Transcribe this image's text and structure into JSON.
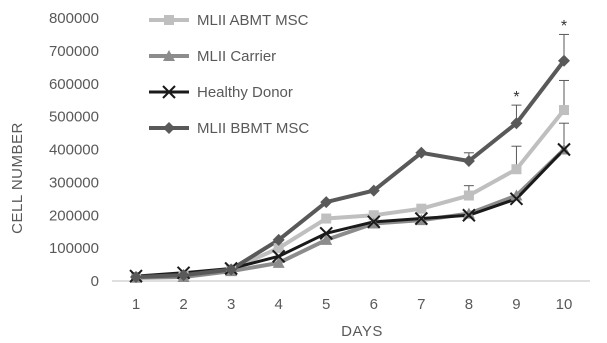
{
  "chart_data": {
    "type": "line",
    "xlabel": "DAYS",
    "ylabel": "CELL NUMBER",
    "x": [
      1,
      2,
      3,
      4,
      5,
      6,
      7,
      8,
      9,
      10
    ],
    "x_tick_labels": [
      "1",
      "2",
      "3",
      "4",
      "5",
      "6",
      "7",
      "8",
      "9",
      "10"
    ],
    "ylim": [
      0,
      800000
    ],
    "y_ticks": [
      0,
      100000,
      200000,
      300000,
      400000,
      500000,
      600000,
      700000,
      800000
    ],
    "y_tick_labels": [
      "0",
      "100000",
      "200000",
      "300000",
      "400000",
      "500000",
      "600000",
      "700000",
      "800000"
    ],
    "grid": false,
    "legend_position": "top-left",
    "series": [
      {
        "name": "MLII ABMT MSC",
        "marker": "square",
        "color": "#bfbfbf",
        "values": [
          12000,
          15000,
          35000,
          100000,
          190000,
          200000,
          220000,
          260000,
          340000,
          520000
        ],
        "errors": [
          0,
          0,
          0,
          0,
          0,
          0,
          0,
          30000,
          70000,
          90000
        ]
      },
      {
        "name": "MLII Carrier",
        "marker": "triangle",
        "color": "#8c8c8c",
        "values": [
          10000,
          12000,
          30000,
          55000,
          125000,
          175000,
          185000,
          205000,
          260000,
          400000
        ],
        "errors": [
          0,
          0,
          0,
          0,
          0,
          0,
          0,
          0,
          0,
          0
        ]
      },
      {
        "name": "Healthy Donor",
        "marker": "x",
        "color": "#1a1a1a",
        "values": [
          15000,
          25000,
          38000,
          75000,
          145000,
          180000,
          190000,
          200000,
          250000,
          400000
        ],
        "errors": [
          0,
          0,
          0,
          0,
          0,
          0,
          0,
          0,
          0,
          80000
        ]
      },
      {
        "name": "MLII BBMT MSC",
        "marker": "diamond",
        "color": "#595959",
        "values": [
          12000,
          18000,
          35000,
          125000,
          240000,
          275000,
          390000,
          365000,
          480000,
          670000
        ],
        "errors": [
          0,
          0,
          0,
          0,
          0,
          0,
          0,
          25000,
          55000,
          80000
        ]
      }
    ],
    "annotations": [
      {
        "text": "*",
        "x": 9,
        "y": 560000
      },
      {
        "text": "*",
        "x": 10,
        "y": 775000
      }
    ]
  }
}
